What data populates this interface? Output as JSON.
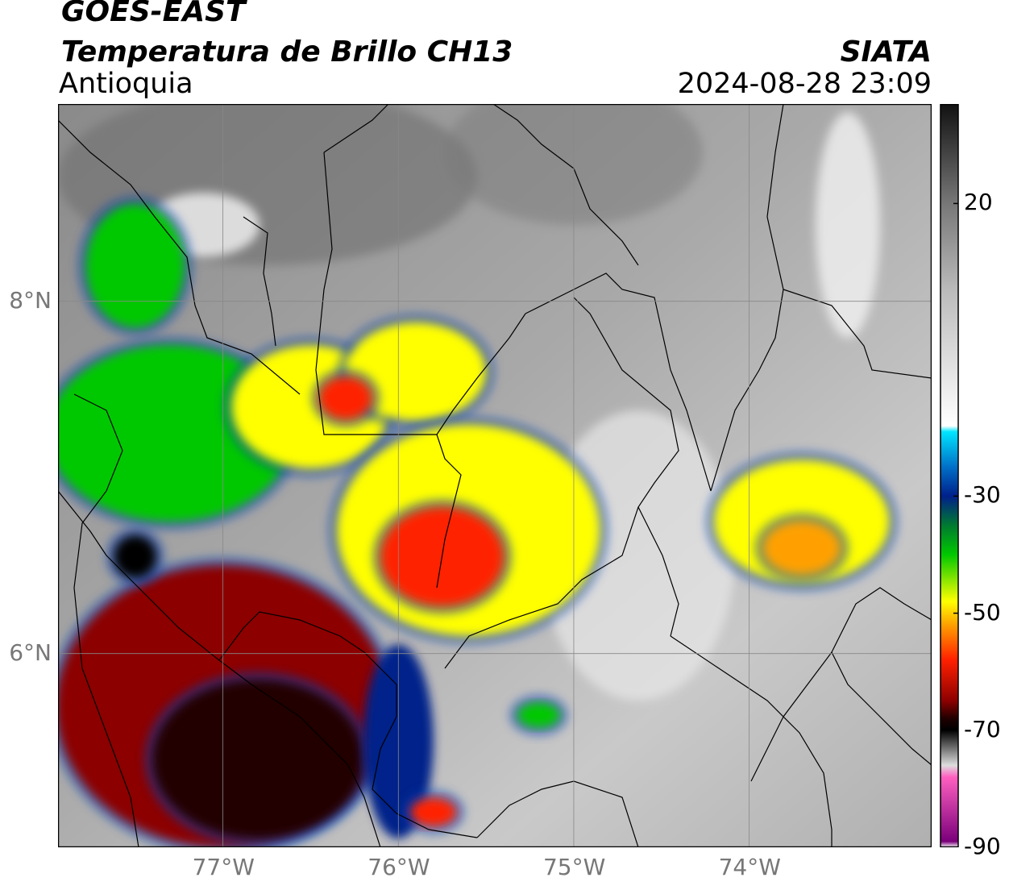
{
  "header": {
    "satellite": "GOES-EAST",
    "product": "Temperatura de Brillo CH13",
    "region": "Antioquia",
    "organization": "SIATA",
    "datetime": "2024-08-28 23:09"
  },
  "map": {
    "lon_range": [
      -77.94,
      -72.96
    ],
    "lat_range": [
      4.9,
      9.12
    ],
    "lat_ticks": [
      {
        "value": 8,
        "label": "8°N"
      },
      {
        "value": 6,
        "label": "6°N"
      }
    ],
    "lon_ticks": [
      {
        "value": -77,
        "label": "77°W"
      },
      {
        "value": -76,
        "label": "76°W"
      },
      {
        "value": -75,
        "label": "75°W"
      },
      {
        "value": -74,
        "label": "74°W"
      }
    ],
    "grid": true
  },
  "colorbar": {
    "range": [
      -90,
      37
    ],
    "ticks": [
      {
        "value": 20,
        "label": "20"
      },
      {
        "value": -30,
        "label": "-30"
      },
      {
        "value": -50,
        "label": "-50"
      },
      {
        "value": -70,
        "label": "-70"
      },
      {
        "value": -90,
        "label": "-90"
      }
    ],
    "stops": [
      {
        "value": 37,
        "color": "#111111"
      },
      {
        "value": 20,
        "color": "#777777"
      },
      {
        "value": 5,
        "color": "#bbbbbb"
      },
      {
        "value": -18,
        "color": "#ffffff"
      },
      {
        "value": -19,
        "color": "#00e5ff"
      },
      {
        "value": -25,
        "color": "#0070c8"
      },
      {
        "value": -30,
        "color": "#00208a"
      },
      {
        "value": -35,
        "color": "#007a30"
      },
      {
        "value": -40,
        "color": "#00c800"
      },
      {
        "value": -48,
        "color": "#ffff00"
      },
      {
        "value": -52,
        "color": "#ffa000"
      },
      {
        "value": -58,
        "color": "#ff2000"
      },
      {
        "value": -65,
        "color": "#8c0000"
      },
      {
        "value": -68,
        "color": "#200000"
      },
      {
        "value": -70,
        "color": "#000000"
      },
      {
        "value": -76,
        "color": "#dddddd"
      },
      {
        "value": -78,
        "color": "#ff60c0"
      },
      {
        "value": -89,
        "color": "#7a007a"
      },
      {
        "value": -90,
        "color": "#ffffff"
      }
    ]
  },
  "clouds": [
    {
      "lon": -77.5,
      "lat": 8.2,
      "rx": 0.28,
      "ry": 0.35,
      "temp": -40
    },
    {
      "lon": -77.3,
      "lat": 7.25,
      "rx": 0.7,
      "ry": 0.5,
      "temp": -42
    },
    {
      "lon": -76.5,
      "lat": 7.4,
      "rx": 0.45,
      "ry": 0.35,
      "temp": -45
    },
    {
      "lon": -75.9,
      "lat": 7.6,
      "rx": 0.4,
      "ry": 0.28,
      "temp": -45
    },
    {
      "lon": -76.3,
      "lat": 7.45,
      "rx": 0.15,
      "ry": 0.12,
      "temp": -58
    },
    {
      "lon": -75.6,
      "lat": 6.7,
      "rx": 0.75,
      "ry": 0.6,
      "temp": -48
    },
    {
      "lon": -75.75,
      "lat": 6.55,
      "rx": 0.35,
      "ry": 0.28,
      "temp": -56
    },
    {
      "lon": -77.0,
      "lat": 5.7,
      "rx": 0.95,
      "ry": 0.8,
      "temp": -62
    },
    {
      "lon": -76.8,
      "lat": 5.4,
      "rx": 0.6,
      "ry": 0.45,
      "temp": -67
    },
    {
      "lon": -77.5,
      "lat": 6.55,
      "rx": 0.12,
      "ry": 0.12,
      "temp": -72
    },
    {
      "lon": -76.0,
      "lat": 5.5,
      "rx": 0.2,
      "ry": 0.55,
      "temp": -30
    },
    {
      "lon": -75.8,
      "lat": 5.1,
      "rx": 0.13,
      "ry": 0.08,
      "temp": -60
    },
    {
      "lon": -75.2,
      "lat": 5.65,
      "rx": 0.12,
      "ry": 0.07,
      "temp": -40
    },
    {
      "lon": -73.7,
      "lat": 6.75,
      "rx": 0.5,
      "ry": 0.35,
      "temp": -45
    },
    {
      "lon": -73.7,
      "lat": 6.6,
      "rx": 0.22,
      "ry": 0.15,
      "temp": -52
    }
  ]
}
